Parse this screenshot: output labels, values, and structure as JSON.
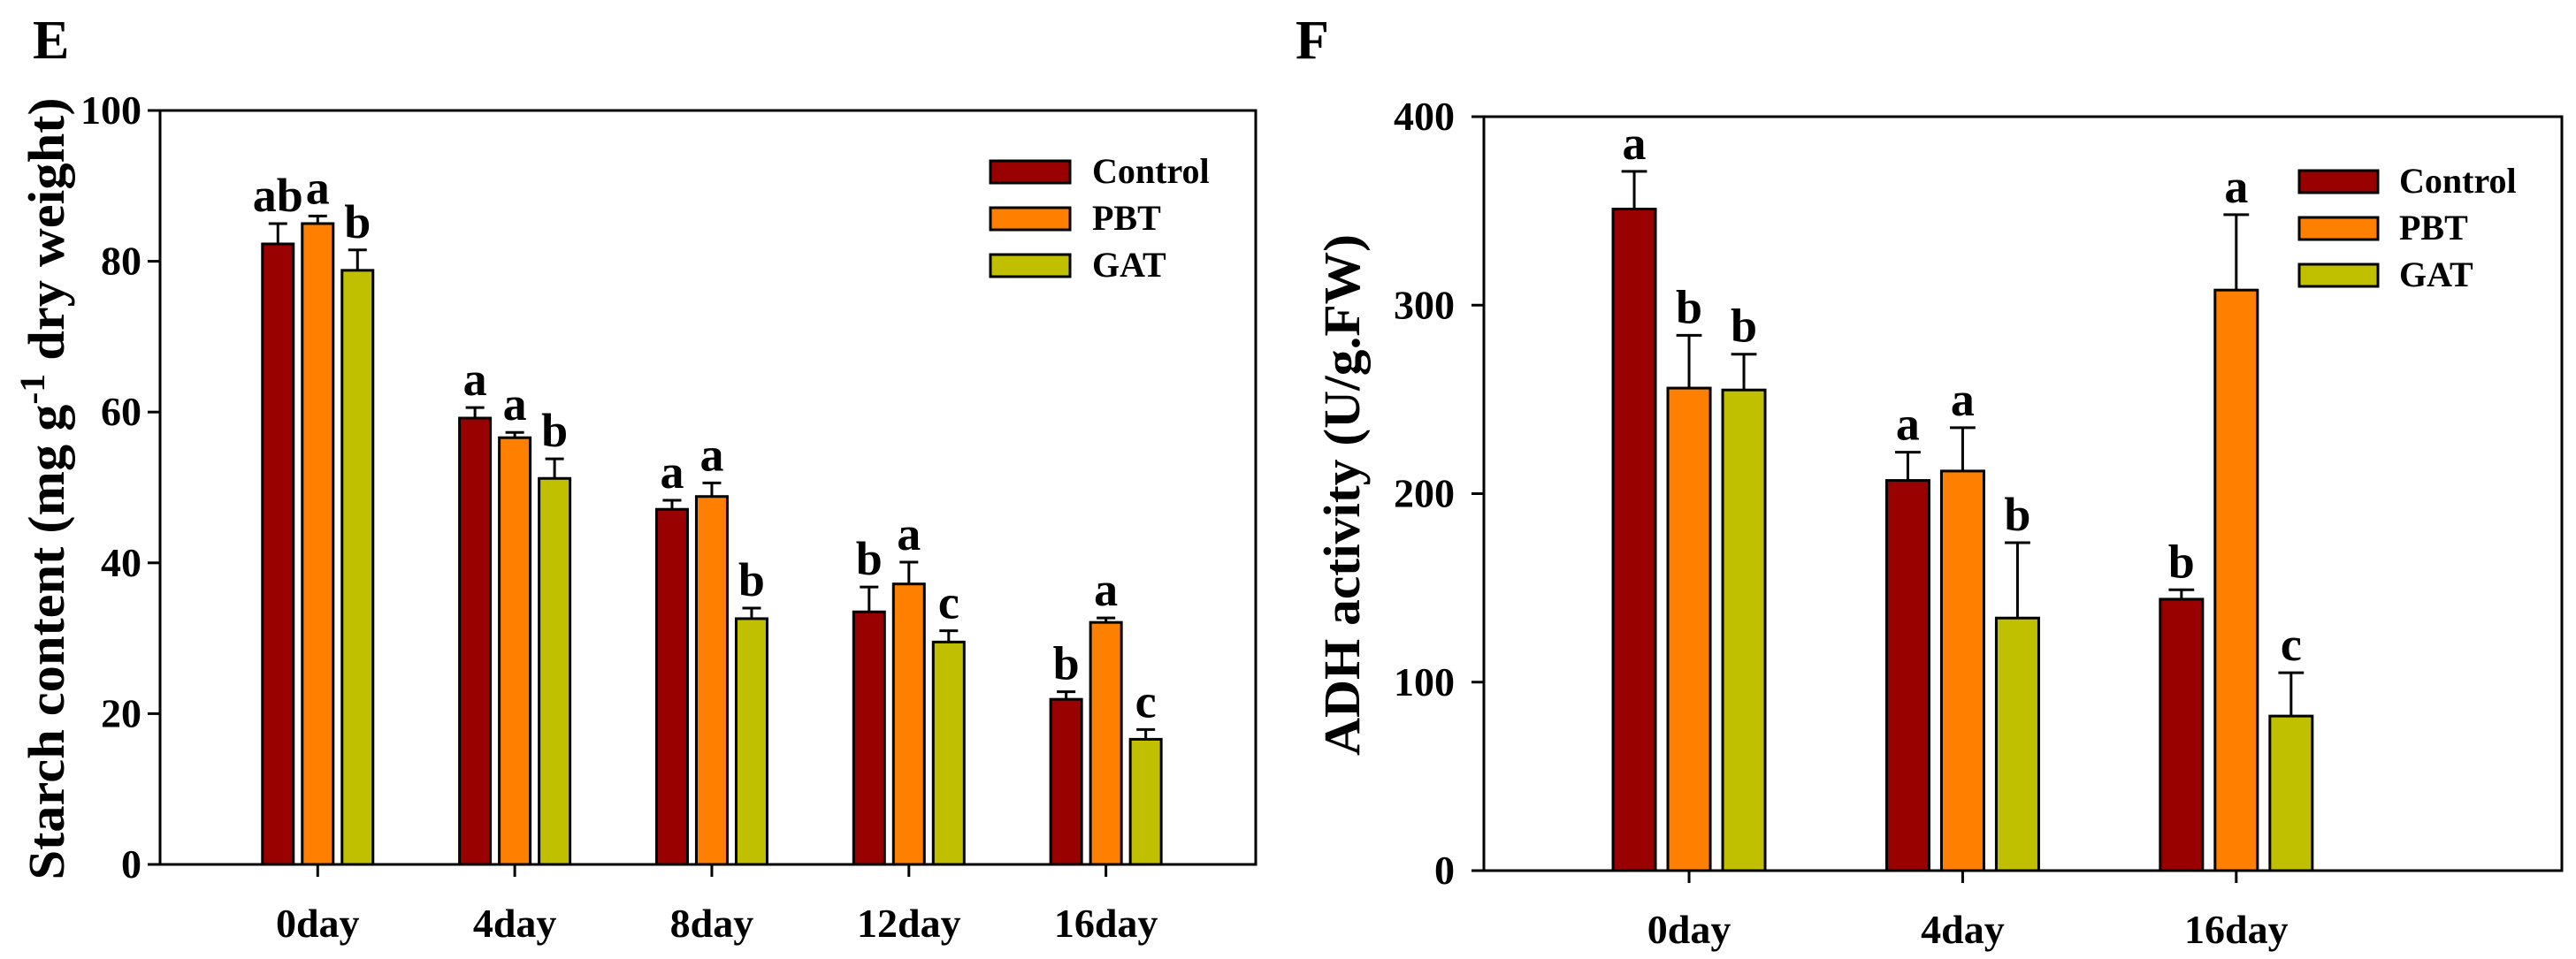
{
  "chart_data": [
    {
      "type": "bar",
      "panel_label": "E",
      "title": "",
      "xlabel": "",
      "ylabel": "Starch content (mg g-1 dry weight)",
      "ylabel_parts": {
        "pre": "Starch content (mg g",
        "sup": "-1",
        "post": " dry weight)"
      },
      "ylim": [
        0,
        100
      ],
      "yticks": [
        0,
        20,
        40,
        60,
        80,
        100
      ],
      "categories": [
        "0day",
        "4day",
        "8day",
        "12day",
        "16day"
      ],
      "legend_position": "top-right",
      "grid": false,
      "series": [
        {
          "name": "Control",
          "color": "#990000",
          "values": [
            82.3,
            59.2,
            47.1,
            33.5,
            21.9
          ],
          "error": [
            2.7,
            1.4,
            1.2,
            3.3,
            1.0
          ],
          "letters": [
            "ab",
            "a",
            "a",
            "b",
            "b"
          ]
        },
        {
          "name": "PBT",
          "color": "#ff8000",
          "values": [
            85.0,
            56.6,
            48.8,
            37.2,
            32.1
          ],
          "error": [
            1.0,
            0.7,
            1.8,
            2.9,
            0.6
          ],
          "letters": [
            "a",
            "a",
            "a",
            "a",
            "a"
          ]
        },
        {
          "name": "GAT",
          "color": "#c0c000",
          "values": [
            78.8,
            51.2,
            32.6,
            29.5,
            16.6
          ],
          "error": [
            2.7,
            2.6,
            1.4,
            1.5,
            1.3
          ],
          "letters": [
            "b",
            "b",
            "b",
            "c",
            "c"
          ]
        }
      ]
    },
    {
      "type": "bar",
      "panel_label": "F",
      "title": "",
      "xlabel": "",
      "ylabel": "ADH activity (U/g.FW)",
      "ylim": [
        0,
        400
      ],
      "yticks": [
        0,
        100,
        200,
        300,
        400
      ],
      "categories": [
        "0day",
        "4day",
        "16day"
      ],
      "legend_position": "top-right",
      "grid": false,
      "series": [
        {
          "name": "Control",
          "color": "#990000",
          "values": [
            351,
            207,
            144
          ],
          "error": [
            20,
            15,
            5
          ],
          "letters": [
            "a",
            "a",
            "b"
          ]
        },
        {
          "name": "PBT",
          "color": "#ff8000",
          "values": [
            256,
            212,
            308
          ],
          "error": [
            28,
            23,
            40
          ],
          "letters": [
            "b",
            "a",
            "a"
          ]
        },
        {
          "name": "GAT",
          "color": "#c0c000",
          "values": [
            255,
            134,
            82
          ],
          "error": [
            19,
            40,
            23
          ],
          "letters": [
            "b",
            "b",
            "c"
          ]
        }
      ]
    }
  ]
}
